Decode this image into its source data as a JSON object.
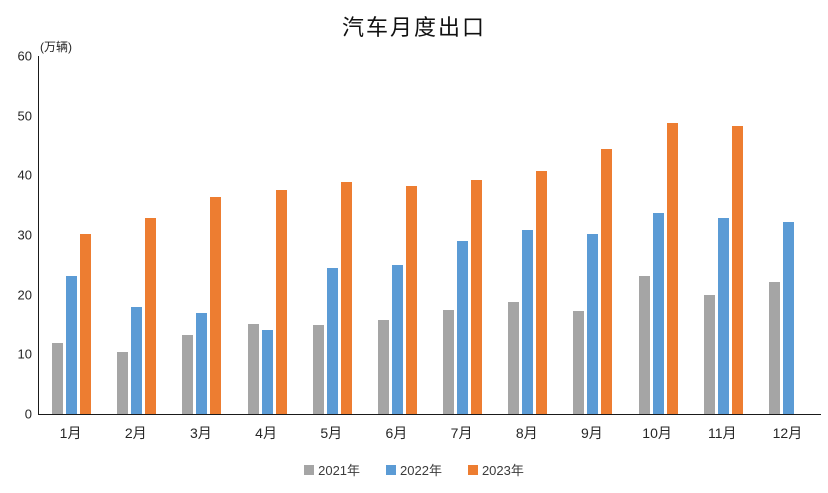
{
  "chart_data": {
    "type": "bar",
    "title": "汽车月度出口",
    "unit_label": "(万辆)",
    "categories": [
      "1月",
      "2月",
      "3月",
      "4月",
      "5月",
      "6月",
      "7月",
      "8月",
      "9月",
      "10月",
      "11月",
      "12月"
    ],
    "series": [
      {
        "name": "2021年",
        "color": "#A5A5A5",
        "values": [
          11.9,
          10.4,
          13.2,
          15.1,
          15.0,
          15.8,
          17.4,
          18.7,
          17.2,
          23.1,
          20.0,
          22.2
        ]
      },
      {
        "name": "2022年",
        "color": "#5B9BD5",
        "values": [
          23.1,
          18.0,
          17.0,
          14.1,
          24.5,
          24.9,
          29.0,
          30.8,
          30.1,
          33.7,
          32.9,
          32.2
        ]
      },
      {
        "name": "2023年",
        "color": "#ED7D31",
        "values": [
          30.1,
          32.9,
          36.4,
          37.6,
          38.9,
          38.2,
          39.2,
          40.8,
          44.4,
          48.8,
          48.2,
          null
        ]
      }
    ],
    "xlabel": "",
    "ylabel": "",
    "ylim": [
      0,
      60
    ],
    "yticks": [
      0,
      10,
      20,
      30,
      40,
      50,
      60
    ],
    "grid": false,
    "legend_position": "bottom"
  }
}
